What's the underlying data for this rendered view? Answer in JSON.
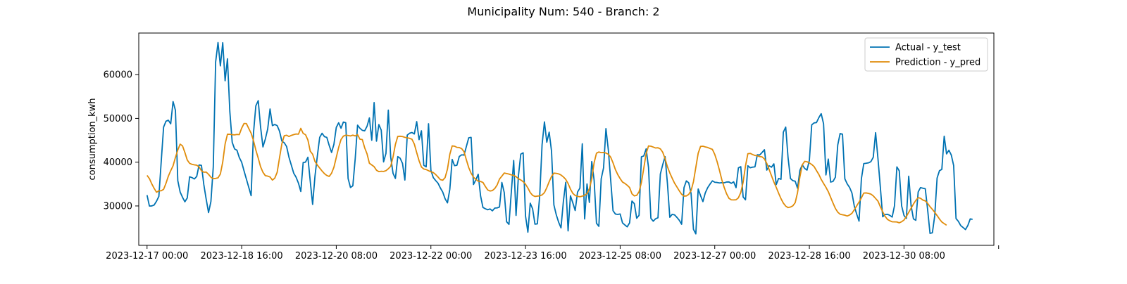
{
  "chart_data": {
    "type": "line",
    "title": "Municipality Num: 540 - Branch: 2",
    "xlabel": "",
    "ylabel": "consumption_kwh",
    "xlim": [
      "2023-12-16 20:30",
      "2023-12-31 22:00"
    ],
    "ylim": [
      21000,
      69500
    ],
    "x_ticks": [
      "2023-12-17 00:00",
      "2023-12-18 16:00",
      "2023-12-20 08:00",
      "2023-12-22 00:00",
      "2023-12-23 16:00",
      "2023-12-25 08:00",
      "2023-12-27 00:00",
      "2023-12-28 16:00",
      "2023-12-30 08:00",
      ""
    ],
    "x_tick_positions": [
      "2023-12-17 00:00",
      "2023-12-18 16:00",
      "2023-12-20 08:00",
      "2023-12-22 00:00",
      "2023-12-23 16:00",
      "2023-12-25 08:00",
      "2023-12-27 00:00",
      "2023-12-28 16:00",
      "2023-12-30 08:00",
      "2024-01-01 00:00"
    ],
    "y_ticks": [
      30000,
      40000,
      50000,
      60000
    ],
    "y_tick_labels": [
      "30000",
      "40000",
      "50000",
      "60000"
    ],
    "grid": false,
    "legend_position": "top-right",
    "x_start": "2023-12-17 00:00",
    "x_step_hours": 1,
    "series": [
      {
        "name": "Actual - y_test",
        "color": "#0072B2",
        "values": [
          32478,
          29977,
          30006,
          30213,
          31075,
          32190,
          40204,
          48009,
          49346,
          49586,
          48754,
          53835,
          51856,
          35785,
          33166,
          31975,
          30954,
          31826,
          36672,
          36472,
          36167,
          36734,
          39365,
          39265,
          34891,
          31547,
          28493,
          31014,
          38898,
          62890,
          67319,
          61997,
          67290,
          58602,
          63620,
          51574,
          44538,
          43024,
          42730,
          41061,
          39996,
          38025,
          36143,
          34245,
          32347,
          46646,
          52882,
          54048,
          48015,
          43487,
          45276,
          47556,
          52157,
          48351,
          48609,
          48360,
          47096,
          44798,
          44434,
          43574,
          41117,
          39305,
          37495,
          36564,
          35227,
          33304,
          39910,
          40017,
          41118,
          35622,
          30354,
          36826,
          41432,
          45683,
          46599,
          45831,
          45660,
          43828,
          42220,
          44063,
          47929,
          48998,
          47758,
          49165,
          49005,
          36269,
          34211,
          34604,
          40765,
          48459,
          47743,
          47279,
          47163,
          48191,
          50106,
          45013,
          53618,
          44798,
          48589,
          47327,
          40061,
          41994,
          51890,
          41203,
          37450,
          36285,
          41271,
          40888,
          39718,
          35916,
          46185,
          46611,
          46782,
          46444,
          49260,
          45155,
          47161,
          39289,
          38932,
          48786,
          38150,
          36495,
          35808,
          35200,
          34106,
          33179,
          31657,
          30702,
          33807,
          40632,
          39204,
          39299,
          41291,
          41675,
          41622,
          43581,
          45569,
          45663,
          34901,
          35953,
          37234,
          32316,
          29660,
          29366,
          29131,
          29316,
          28887,
          29505,
          29550,
          29758,
          35364,
          33080,
          26403,
          25796,
          33167,
          40390,
          27828,
          36849,
          41836,
          42140,
          27718,
          24004,
          30626,
          29338,
          25833,
          25907,
          32302,
          43981,
          49194,
          44562,
          46853,
          42508,
          30224,
          27983,
          26287,
          24998,
          30988,
          35389,
          24302,
          32323,
          30707,
          28957,
          33180,
          34077,
          44200,
          27018,
          35037,
          30796,
          40147,
          35897,
          26054,
          25338,
          36201,
          38709,
          47672,
          42864,
          35959,
          28906,
          28155,
          28060,
          28159,
          26135,
          25659,
          25233,
          26141,
          31122,
          30523,
          27191,
          27864,
          41226,
          41428,
          43041,
          38793,
          27174,
          26519,
          27079,
          27302,
          37279,
          39419,
          41255,
          35122,
          27408,
          28075,
          27970,
          27389,
          26729,
          25819,
          34176,
          35729,
          35284,
          32807,
          24662,
          23614,
          33871,
          32359,
          30993,
          32977,
          34169,
          34992,
          35730,
          35408,
          35361,
          35249,
          35315,
          35294,
          35461,
          35483,
          35164,
          35506,
          34176,
          38697,
          38978,
          32049,
          31401,
          39183,
          38722,
          38861,
          38933,
          41693,
          41639,
          42222,
          42845,
          38189,
          39167,
          38857,
          39617,
          34875,
          36287,
          36083,
          46856,
          48011,
          40992,
          36271,
          35783,
          35661,
          34046,
          38150,
          39386,
          38575,
          38190,
          40434,
          48534,
          48972,
          49047,
          50167,
          51077,
          48762,
          37074,
          40716,
          35456,
          35605,
          36577,
          43943,
          46546,
          46396,
          36189,
          35039,
          34237,
          32952,
          29956,
          28145,
          26534,
          36238,
          39662,
          39757,
          39845,
          40114,
          41096,
          46735,
          40796,
          34342,
          27536,
          28031,
          28092,
          27858,
          27462,
          30074,
          38915,
          38024,
          30023,
          27843,
          27149,
          36787,
          30088,
          27038,
          26723,
          33205,
          34195,
          34057,
          33933,
          29128,
          23728,
          23870,
          27768,
          36377,
          38055,
          38349,
          45936,
          41892,
          42722,
          41623,
          39210,
          27123,
          26478,
          25503,
          25060,
          24611,
          25545,
          27030,
          26943
        ],
        "linewidth": 1.8
      },
      {
        "name": "Prediction - y_pred",
        "color": "#E08C0A",
        "values": [
          36982,
          36252,
          35043,
          34015,
          33132,
          33452,
          33465,
          33800,
          35165,
          36789,
          38050,
          39162,
          41073,
          42778,
          44113,
          43712,
          42209,
          40491,
          39737,
          39506,
          39391,
          39313,
          38920,
          38033,
          37702,
          37746,
          37220,
          36562,
          36213,
          36287,
          36418,
          37294,
          40037,
          44153,
          46386,
          46366,
          46282,
          46230,
          46331,
          46296,
          47766,
          48838,
          48813,
          47693,
          46611,
          44920,
          42761,
          40940,
          38945,
          37694,
          36928,
          36812,
          36617,
          35908,
          36356,
          37669,
          40971,
          44210,
          46030,
          46153,
          45868,
          46121,
          46291,
          46428,
          46390,
          47725,
          46575,
          46269,
          45072,
          42509,
          41818,
          40150,
          39339,
          38651,
          37971,
          37376,
          36963,
          36741,
          37475,
          38830,
          41083,
          43356,
          45162,
          45954,
          46160,
          46093,
          45997,
          46177,
          45998,
          46287,
          45251,
          45166,
          43300,
          41910,
          39750,
          39372,
          38962,
          38155,
          37840,
          37923,
          37878,
          38055,
          38498,
          39051,
          41186,
          44075,
          45885,
          45921,
          45855,
          45676,
          45572,
          45446,
          45232,
          44124,
          42174,
          40330,
          38889,
          38440,
          38308,
          38050,
          37803,
          37637,
          37188,
          36622,
          36009,
          35877,
          36477,
          38400,
          41802,
          43711,
          43650,
          43384,
          43337,
          43097,
          42390,
          40536,
          38755,
          37471,
          36583,
          36060,
          35664,
          35596,
          35370,
          34470,
          33660,
          33407,
          33517,
          33974,
          34785,
          36153,
          36809,
          37512,
          37400,
          37282,
          37105,
          36984,
          36691,
          36224,
          35927,
          35555,
          34965,
          34095,
          33051,
          32420,
          32174,
          32241,
          32314,
          32525,
          33048,
          34175,
          35532,
          36744,
          37491,
          37439,
          37321,
          37063,
          36630,
          36072,
          35124,
          33845,
          32871,
          32395,
          32175,
          32102,
          32243,
          32435,
          32834,
          33896,
          36212,
          39868,
          42053,
          42326,
          42179,
          42211,
          42072,
          41820,
          41140,
          39837,
          38298,
          37158,
          36242,
          35464,
          35145,
          34724,
          34204,
          32769,
          32293,
          32424,
          33240,
          35342,
          38621,
          41978,
          43710,
          43643,
          43455,
          43238,
          43296,
          43035,
          42278,
          40802,
          38947,
          37545,
          36336,
          35209,
          34342,
          33460,
          32668,
          32251,
          32289,
          32640,
          33515,
          35546,
          38806,
          42051,
          43594,
          43646,
          43492,
          43356,
          43131,
          42925,
          41783,
          40111,
          38122,
          35963,
          34221,
          32777,
          31748,
          31403,
          31379,
          31409,
          31854,
          33063,
          35432,
          39152,
          41931,
          42004,
          41745,
          41533,
          41456,
          41276,
          41218,
          40733,
          39722,
          38311,
          36885,
          35474,
          34239,
          32911,
          31669,
          30645,
          29958,
          29624,
          29744,
          30020,
          30738,
          33060,
          36650,
          39378,
          40180,
          40096,
          39828,
          39476,
          39002,
          38081,
          37204,
          36063,
          35143,
          34257,
          33263,
          31956,
          30650,
          29426,
          28580,
          28107,
          27979,
          27885,
          27696,
          27929,
          28328,
          29137,
          30017,
          30888,
          31854,
          32944,
          32974,
          32867,
          32710,
          32303,
          31710,
          31103,
          29840,
          28664,
          27646,
          26933,
          26616,
          26380,
          26366,
          26341,
          26143,
          26389,
          26786,
          27589,
          28545,
          29481,
          30431,
          31269,
          31912,
          31742,
          31338,
          31164,
          30593,
          29830,
          29220,
          28535,
          27800,
          27014,
          26336,
          25951,
          25588
        ],
        "linewidth": 1.8
      }
    ]
  }
}
